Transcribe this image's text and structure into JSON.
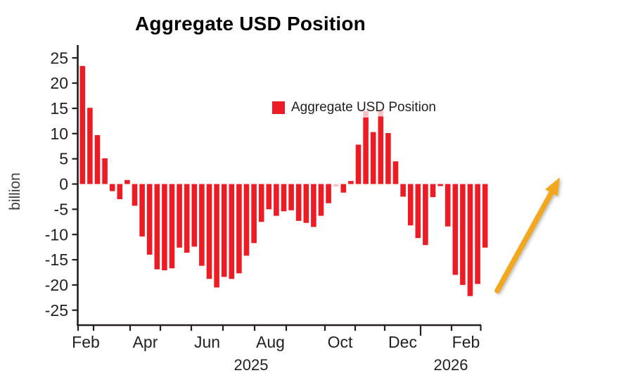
{
  "title": "Aggregate USD Position",
  "legend": {
    "label": "Aggregate USD Position"
  },
  "colors": {
    "bar": "#ed1c24",
    "bar_faint": "#f8c2c7",
    "arrow": "#f3a71e",
    "axis": "#231f20",
    "tick_text": "#231f20",
    "axis_label_text": "#3d3d3d",
    "title_text": "#000000"
  },
  "chart_data": {
    "type": "bar",
    "title": "Aggregate USD Position",
    "ylabel": "billion",
    "xlabel": "",
    "ylim": [
      -25,
      25
    ],
    "ytick_step": 5,
    "yticks": [
      25,
      20,
      15,
      10,
      5,
      0,
      -5,
      -10,
      -15,
      -20,
      -25
    ],
    "grid": false,
    "legend_entries": [
      "Aggregate USD Position"
    ],
    "legend_position": "upper center",
    "x_axis_kind": "weekly dates, Feb 2025 - Feb 2026",
    "x_month_tick_labels": [
      "Feb",
      "Apr",
      "Jun",
      "Aug",
      "Oct",
      "Dec",
      "Feb"
    ],
    "x_year_labels": [
      "2025",
      "2026"
    ],
    "series_name": "Aggregate USD Position",
    "unit": "USD billion",
    "values": [
      23.4,
      15.1,
      9.7,
      5.1,
      -1.4,
      -3.0,
      0.8,
      -4.3,
      -10.4,
      -14.0,
      -16.9,
      -17.1,
      -16.7,
      -12.6,
      -13.6,
      -12.4,
      -16.2,
      -18.8,
      -20.5,
      -18.4,
      -18.8,
      -17.7,
      -14.2,
      -11.7,
      -7.5,
      -5.0,
      -6.3,
      -5.4,
      -5.2,
      -7.3,
      -7.7,
      -8.5,
      -6.3,
      -3.8,
      -0.5,
      -1.7,
      0.6,
      7.8,
      13.2,
      10.3,
      13.4,
      10.1,
      4.5,
      -2.5,
      -8.2,
      -10.7,
      -12.1,
      -2.6,
      -0.4,
      -8.4,
      -18.0,
      -20.0,
      -22.2,
      -19.8,
      -12.6
    ],
    "highlight_tips": [
      {
        "index": 38,
        "to": 14.5
      },
      {
        "index": 40,
        "to": 14.6
      }
    ],
    "faint_bars": [
      34
    ],
    "annotation": {
      "type": "upward-arrow",
      "meaning": "rising trend callout",
      "color": "#f3a71e"
    }
  }
}
